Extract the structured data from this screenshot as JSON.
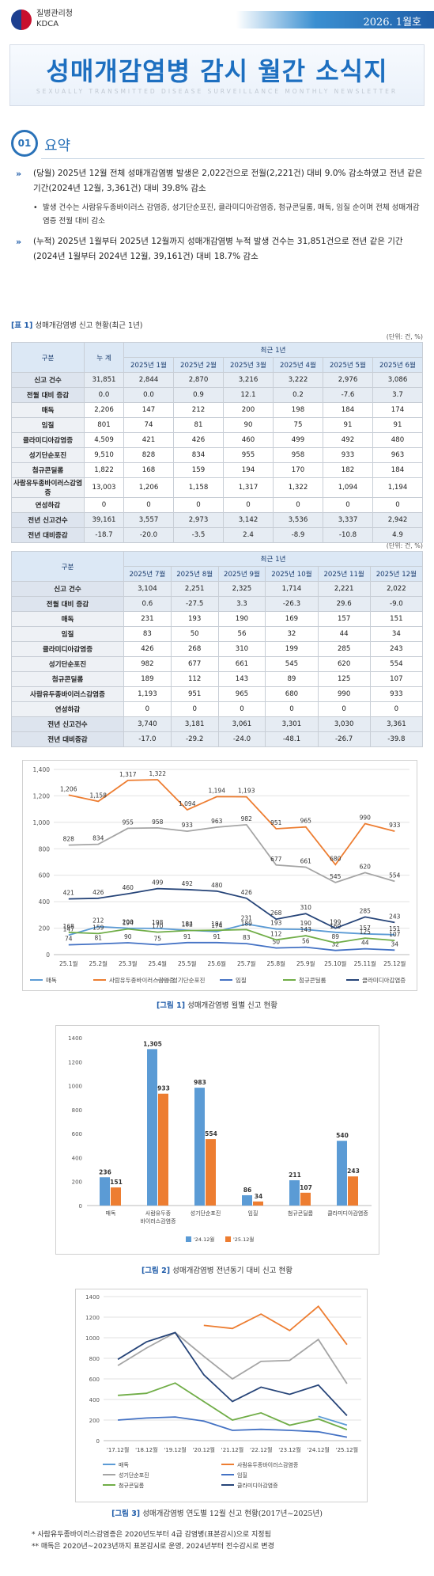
{
  "header": {
    "agency_ko": "질병관리청",
    "agency_en": "KDCA",
    "issue": "2026. 1월호",
    "title": "성매개감염병 감시 월간 소식지",
    "subtitle": "SEXUALLY TRANSMITTED DISEASE SURVEILLANCE MONTHLY NEWSLETTER"
  },
  "section": {
    "number": "01",
    "title": "요약"
  },
  "summary": {
    "p1": "(당월) 2025년 12월 전체 성매개감염병 발생은 2,022건으로 전월(2,221건) 대비 9.0% 감소하였고 전년 같은 기간(2024년 12월, 3,361건) 대비 39.8% 감소",
    "p1_sub": "발생 건수는 사람유두종바이러스 감염증, 성기단순포진, 클라미디아감염증, 첨규콘딜롬, 매독, 임질 순이며 전체 성매개감염증 전월 대비 감소",
    "p2": "(누적) 2025년 1월부터 2025년 12월까지 성매개감염병 누적 발생 건수는 31,851건으로 전년 같은 기간(2024년 1월부터 2024년 12월, 39,161건) 대비 18.7% 감소"
  },
  "table1": {
    "label": "[표 1]",
    "caption": "성매개감염병 신고 현황(최근 1년)",
    "unit": "(단위: 건, %)",
    "col_group": "구분",
    "col_total": "누 계",
    "col_recent": "최근 1년",
    "months_a": [
      "2025년 1월",
      "2025년 2월",
      "2025년 3월",
      "2025년 4월",
      "2025년 5월",
      "2025년 6월"
    ],
    "rows_a": [
      [
        "신고 건수",
        "31,851",
        "2,844",
        "2,870",
        "3,216",
        "3,222",
        "2,976",
        "3,086"
      ],
      [
        "전월 대비 증감",
        "0.0",
        "0.0",
        "0.9",
        "12.1",
        "0.2",
        "-7.6",
        "3.7"
      ],
      [
        "매독",
        "2,206",
        "147",
        "212",
        "200",
        "198",
        "184",
        "174"
      ],
      [
        "임질",
        "801",
        "74",
        "81",
        "90",
        "75",
        "91",
        "91"
      ],
      [
        "클라미디아감염증",
        "4,509",
        "421",
        "426",
        "460",
        "499",
        "492",
        "480"
      ],
      [
        "성기단순포진",
        "9,510",
        "828",
        "834",
        "955",
        "958",
        "933",
        "963"
      ],
      [
        "첨규콘딜롬",
        "1,822",
        "168",
        "159",
        "194",
        "170",
        "182",
        "184"
      ],
      [
        "사람유두종바이러스감염증",
        "13,003",
        "1,206",
        "1,158",
        "1,317",
        "1,322",
        "1,094",
        "1,194"
      ],
      [
        "연성하감",
        "0",
        "0",
        "0",
        "0",
        "0",
        "0",
        "0"
      ],
      [
        "전년 신고건수",
        "39,161",
        "3,557",
        "2,973",
        "3,142",
        "3,536",
        "3,337",
        "2,942"
      ],
      [
        "전년 대비증감",
        "-18.7",
        "-20.0",
        "-3.5",
        "2.4",
        "-8.9",
        "-10.8",
        "4.9"
      ]
    ],
    "months_b": [
      "2025년 7월",
      "2025년 8월",
      "2025년 9월",
      "2025년 10월",
      "2025년 11월",
      "2025년 12월"
    ],
    "rows_b": [
      [
        "신고 건수",
        "3,104",
        "2,251",
        "2,325",
        "1,714",
        "2,221",
        "2,022"
      ],
      [
        "전월 대비 증감",
        "0.6",
        "-27.5",
        "3.3",
        "-26.3",
        "29.6",
        "-9.0"
      ],
      [
        "매독",
        "231",
        "193",
        "190",
        "169",
        "157",
        "151"
      ],
      [
        "임질",
        "83",
        "50",
        "56",
        "32",
        "44",
        "34"
      ],
      [
        "클라미디아감염증",
        "426",
        "268",
        "310",
        "199",
        "285",
        "243"
      ],
      [
        "성기단순포진",
        "982",
        "677",
        "661",
        "545",
        "620",
        "554"
      ],
      [
        "첨규콘딜롬",
        "189",
        "112",
        "143",
        "89",
        "125",
        "107"
      ],
      [
        "사람유두종바이러스감염증",
        "1,193",
        "951",
        "965",
        "680",
        "990",
        "933"
      ],
      [
        "연성하감",
        "0",
        "0",
        "0",
        "0",
        "0",
        "0"
      ],
      [
        "전년 신고건수",
        "3,740",
        "3,181",
        "3,061",
        "3,301",
        "3,030",
        "3,361"
      ],
      [
        "전년 대비증감",
        "-17.0",
        "-29.2",
        "-24.0",
        "-48.1",
        "-26.7",
        "-39.8"
      ]
    ]
  },
  "figures": {
    "fig1_label": "[그림 1]",
    "fig1_caption": "성매개감염병 월별 신고 현황",
    "fig2_label": "[그림 2]",
    "fig2_caption": "성매개감염병 전년동기 대비 신고 현황",
    "fig3_label": "[그림 3]",
    "fig3_caption": "성매개감염병 연도별 12월 신고 현황(2017년~2025년)"
  },
  "chart_data": [
    {
      "type": "line",
      "categories": [
        "25.1월",
        "25.2월",
        "25.3월",
        "25.4월",
        "25.5월",
        "25.6월",
        "25.7월",
        "25.8월",
        "25.9월",
        "25.10월",
        "25.11월",
        "25.12월"
      ],
      "ylim": [
        0,
        1400
      ],
      "yticks": [
        "0",
        "200",
        "400",
        "600",
        "800",
        "1,000",
        "1,200",
        "1,400"
      ],
      "grid": true,
      "legend": "bottom",
      "series": [
        {
          "name": "매독",
          "color": "#5b9bd5",
          "values": [
            147,
            212,
            200,
            198,
            184,
            174,
            231,
            193,
            190,
            169,
            157,
            151
          ],
          "labels": [
            "147",
            "212",
            "200",
            "198",
            "184",
            "174",
            "231",
            "193",
            "190",
            "169",
            "157",
            "151"
          ]
        },
        {
          "name": "사람유두종바이러스감염증",
          "color": "#ed7d31",
          "values": [
            1206,
            1158,
            1317,
            1322,
            1094,
            1194,
            1193,
            951,
            965,
            680,
            990,
            933
          ],
          "labels": [
            "1,206",
            "1,158",
            "1,317",
            "1,322",
            "1,094",
            "1,194",
            "1,193",
            "951",
            "965",
            "680",
            "990",
            "933"
          ]
        },
        {
          "name": "성기단순포진",
          "color": "#a5a5a5",
          "values": [
            828,
            834,
            955,
            958,
            933,
            963,
            982,
            677,
            661,
            545,
            620,
            554
          ],
          "labels": [
            "828",
            "834",
            "955",
            "958",
            "933",
            "963",
            "982",
            "677",
            "661",
            "545",
            "620",
            "554"
          ]
        },
        {
          "name": "임질",
          "color": "#4472c4",
          "values": [
            74,
            81,
            90,
            75,
            91,
            91,
            83,
            50,
            56,
            32,
            44,
            34
          ],
          "labels": [
            "74",
            "81",
            "90",
            "75",
            "91",
            "91",
            "83",
            "50",
            "56",
            "32",
            "44",
            "34"
          ]
        },
        {
          "name": "첨규콘딜롬",
          "color": "#70ad47",
          "values": [
            168,
            159,
            194,
            170,
            182,
            184,
            189,
            112,
            143,
            89,
            125,
            107
          ],
          "labels": [
            "168",
            "159",
            "194",
            "170",
            "182",
            "184",
            "189",
            "112",
            "143",
            "89",
            "125",
            "107"
          ]
        },
        {
          "name": "클라미디아감염증",
          "color": "#264478",
          "values": [
            421,
            426,
            460,
            499,
            492,
            480,
            426,
            268,
            310,
            199,
            285,
            243
          ],
          "labels": [
            "421",
            "426",
            "460",
            "499",
            "492",
            "480",
            "426",
            "268",
            "310",
            "199",
            "285",
            "243"
          ]
        }
      ]
    },
    {
      "type": "bar",
      "categories": [
        "매독",
        "사람유두종바이러스감염증",
        "성기단순포진",
        "임질",
        "첨규콘딜롬",
        "클라미디아감염증"
      ],
      "category_lines": [
        [
          "매독"
        ],
        [
          "사람유두종",
          "바이러스감염증"
        ],
        [
          "성기단순포진"
        ],
        [
          "임질"
        ],
        [
          "첨규콘딜롬"
        ],
        [
          "클라미디아감염증"
        ]
      ],
      "ylim": [
        0,
        1400
      ],
      "yticks": [
        "0",
        "200",
        "400",
        "600",
        "800",
        "1000",
        "1200",
        "1400"
      ],
      "legend": "bottom",
      "series": [
        {
          "name": "'24.12월",
          "color": "#5b9bd5",
          "values": [
            236,
            1305,
            983,
            86,
            211,
            540
          ],
          "labels": [
            "236",
            "1,305",
            "983",
            "86",
            "211",
            "540"
          ]
        },
        {
          "name": "'25.12월",
          "color": "#ed7d31",
          "values": [
            151,
            933,
            554,
            34,
            107,
            243
          ],
          "labels": [
            "151",
            "933",
            "554",
            "34",
            "107",
            "243"
          ]
        }
      ]
    },
    {
      "type": "line",
      "categories": [
        "'17.12월",
        "'18.12월",
        "'19.12월",
        "'20.12월",
        "'21.12월",
        "'22.12월",
        "'23.12월",
        "'24.12월",
        "'25.12월"
      ],
      "ylim": [
        0,
        1400
      ],
      "yticks": [
        "0",
        "200",
        "400",
        "600",
        "800",
        "1000",
        "1200",
        "1400"
      ],
      "grid": true,
      "legend": "bottom",
      "series": [
        {
          "name": "매독",
          "color": "#5b9bd5",
          "values": [
            null,
            null,
            null,
            null,
            null,
            null,
            null,
            236,
            151
          ]
        },
        {
          "name": "사람유두종바이러스감염증",
          "color": "#ed7d31",
          "values": [
            null,
            null,
            null,
            1120,
            1090,
            1230,
            1070,
            1305,
            933
          ]
        },
        {
          "name": "성기단순포진",
          "color": "#a5a5a5",
          "values": [
            730,
            900,
            1050,
            820,
            600,
            770,
            780,
            983,
            554
          ]
        },
        {
          "name": "임질",
          "color": "#4472c4",
          "values": [
            200,
            220,
            230,
            190,
            100,
            110,
            100,
            86,
            34
          ]
        },
        {
          "name": "첨규콘딜롬",
          "color": "#70ad47",
          "values": [
            440,
            460,
            560,
            380,
            200,
            270,
            150,
            211,
            107
          ]
        },
        {
          "name": "클라미디아감염증",
          "color": "#264478",
          "values": [
            790,
            960,
            1050,
            640,
            380,
            520,
            450,
            540,
            243
          ]
        }
      ]
    }
  ],
  "notes": {
    "n1": "* 사람유두종바이러스감염증은 2020년도부터 4급 감염병(표본감시)으로 지정됨",
    "n2": "** 매독은 2020년~2023년까지 표본감시로 운영, 2024년부터 전수감시로 변경"
  }
}
